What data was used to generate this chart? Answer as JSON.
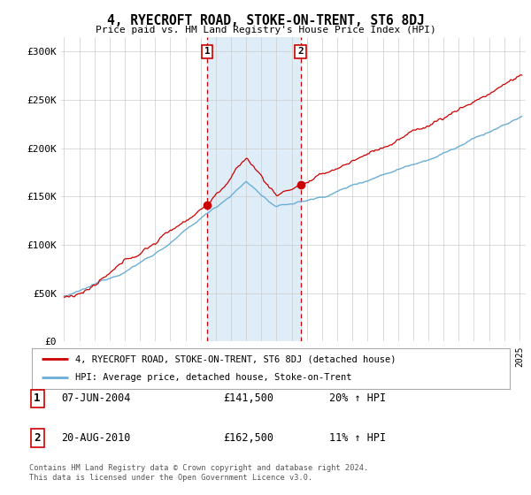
{
  "title": "4, RYECROFT ROAD, STOKE-ON-TRENT, ST6 8DJ",
  "subtitle": "Price paid vs. HM Land Registry's House Price Index (HPI)",
  "ylabel_ticks": [
    "£0",
    "£50K",
    "£100K",
    "£150K",
    "£200K",
    "£250K",
    "£300K"
  ],
  "ytick_values": [
    0,
    50000,
    100000,
    150000,
    200000,
    250000,
    300000
  ],
  "ylim": [
    0,
    315000
  ],
  "sale1_year": 2004,
  "sale1_month": 6,
  "sale1_price": 141500,
  "sale2_year": 2010,
  "sale2_month": 8,
  "sale2_price": 162500,
  "hpi_color": "#6baed6",
  "price_color": "#cc0000",
  "shade_color": "#daeaf7",
  "legend_line1": "4, RYECROFT ROAD, STOKE-ON-TRENT, ST6 8DJ (detached house)",
  "legend_line2": "HPI: Average price, detached house, Stoke-on-Trent",
  "table_row1": [
    "1",
    "07-JUN-2004",
    "£141,500",
    "20% ↑ HPI"
  ],
  "table_row2": [
    "2",
    "20-AUG-2010",
    "£162,500",
    "11% ↑ HPI"
  ],
  "footer": "Contains HM Land Registry data © Crown copyright and database right 2024.\nThis data is licensed under the Open Government Licence v3.0.",
  "background_color": "#ffffff",
  "grid_color": "#cccccc",
  "start_year": 1995,
  "end_year": 2025
}
